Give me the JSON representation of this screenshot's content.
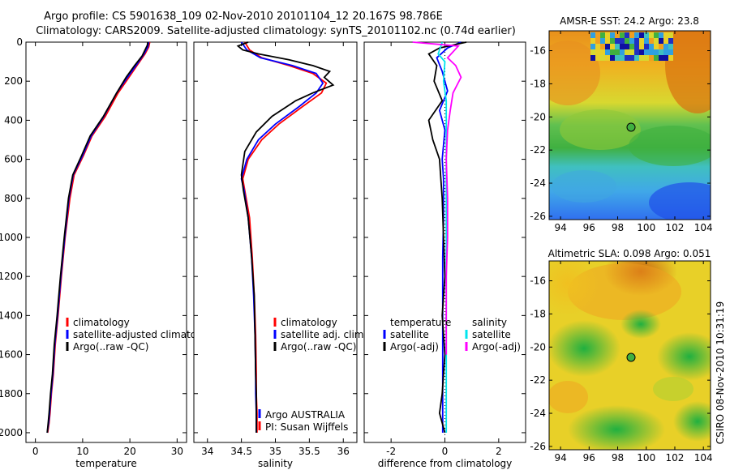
{
  "header": {
    "title_line1": "Argo profile: CS 5901638_109 02-Nov-2010 20101104_12 20.167S 98.786E",
    "title_line2": "Climatology: CARS2009. Satellite-adjusted climatology: synTS_20101102.nc (0.74d earlier)"
  },
  "side_label": "CSIRO 08-Nov-2010 10:31:19",
  "colors": {
    "red": "#ff0000",
    "blue": "#0000ff",
    "black": "#000000",
    "cyan": "#00e5ee",
    "magenta": "#ff00ff"
  },
  "chart_data": [
    {
      "type": "line",
      "panel": "temperature",
      "xlabel": "temperature",
      "xlim": [
        -2,
        32
      ],
      "ylim": [
        2050,
        0
      ],
      "xticks": [
        0,
        10,
        20,
        30
      ],
      "yticks": [
        0,
        200,
        400,
        600,
        800,
        1000,
        1200,
        1400,
        1600,
        1800,
        2000
      ],
      "legend": [
        "climatology",
        "satellite-adjusted climatolog",
        "Argo(..raw -QC)"
      ],
      "series": [
        {
          "name": "climatology",
          "color": "#ff0000",
          "x": [
            24.2,
            24.0,
            23.2,
            21.5,
            19.8,
            17.5,
            14.8,
            12.0,
            10.2,
            8.2,
            7.3,
            6.3,
            5.5,
            4.8,
            4.2,
            3.8,
            3.4,
            3.1,
            2.9,
            2.6
          ],
          "y": [
            0,
            25,
            60,
            120,
            180,
            260,
            380,
            480,
            580,
            680,
            800,
            1000,
            1200,
            1400,
            1550,
            1700,
            1800,
            1900,
            1950,
            2000
          ]
        },
        {
          "name": "satellite-adjusted climatolog",
          "color": "#0000ff",
          "x": [
            24.0,
            23.8,
            23.0,
            21.3,
            19.5,
            17.2,
            14.5,
            11.8,
            10.0,
            8.0,
            7.1,
            6.2,
            5.4,
            4.7,
            4.1,
            3.7,
            3.3,
            3.0,
            2.8,
            2.5
          ],
          "y": [
            0,
            25,
            60,
            120,
            180,
            260,
            380,
            480,
            580,
            680,
            800,
            1000,
            1200,
            1400,
            1550,
            1700,
            1800,
            1900,
            1950,
            2000
          ]
        },
        {
          "name": "Argo(..raw -QC)",
          "color": "#000000",
          "x": [
            23.8,
            23.7,
            23.2,
            22.6,
            21.0,
            19.2,
            17.2,
            14.4,
            11.6,
            9.8,
            7.9,
            7.0,
            6.1,
            5.3,
            4.6,
            4.0,
            3.6,
            3.2,
            2.9,
            2.7,
            2.5
          ],
          "y": [
            0,
            15,
            40,
            70,
            120,
            180,
            260,
            380,
            480,
            580,
            680,
            800,
            1000,
            1200,
            1400,
            1550,
            1700,
            1800,
            1900,
            1950,
            2000
          ]
        }
      ]
    },
    {
      "type": "line",
      "panel": "salinity",
      "xlabel": "salinity",
      "xlim": [
        33.8,
        36.2
      ],
      "ylim": [
        2050,
        0
      ],
      "xticks": [
        34,
        34.5,
        35,
        35.5,
        36
      ],
      "legend": [
        "climatology",
        "satellite adj. clim.",
        "Argo(..raw -QC)"
      ],
      "annotations": [
        "Argo AUSTRALIA",
        "PI: Susan Wijffels"
      ],
      "series": [
        {
          "name": "climatology",
          "color": "#ff0000",
          "x": [
            34.55,
            34.62,
            34.8,
            35.2,
            35.55,
            35.75,
            35.68,
            35.4,
            35.05,
            34.8,
            34.6,
            34.52,
            34.55,
            34.62,
            34.66,
            34.69,
            34.71,
            34.72,
            34.72,
            34.73,
            34.73
          ],
          "y": [
            0,
            40,
            80,
            120,
            160,
            210,
            260,
            330,
            420,
            500,
            600,
            700,
            760,
            900,
            1100,
            1300,
            1500,
            1700,
            1800,
            1900,
            2000
          ]
        },
        {
          "name": "satellite adj. clim.",
          "color": "#0000ff",
          "x": [
            34.5,
            34.58,
            34.78,
            35.25,
            35.6,
            35.7,
            35.6,
            35.35,
            35.0,
            34.75,
            34.58,
            34.5,
            34.54,
            34.6,
            34.65,
            34.68,
            34.7,
            34.71,
            34.71,
            34.72,
            34.72
          ],
          "y": [
            0,
            40,
            80,
            120,
            160,
            210,
            260,
            330,
            420,
            500,
            600,
            700,
            760,
            900,
            1100,
            1300,
            1500,
            1700,
            1800,
            1900,
            2000
          ]
        },
        {
          "name": "Argo(..raw -QC)",
          "color": "#000000",
          "x": [
            34.6,
            34.45,
            34.52,
            34.75,
            35.2,
            35.55,
            35.8,
            35.72,
            35.85,
            35.55,
            35.3,
            34.95,
            34.72,
            34.55,
            34.5,
            34.53,
            34.6,
            34.65,
            34.69,
            34.7,
            34.71,
            34.72,
            34.72,
            34.72
          ],
          "y": [
            0,
            20,
            40,
            60,
            90,
            120,
            150,
            180,
            220,
            260,
            300,
            380,
            460,
            560,
            680,
            760,
            900,
            1100,
            1300,
            1500,
            1700,
            1800,
            1900,
            2000
          ]
        }
      ]
    },
    {
      "type": "line",
      "panel": "difference",
      "xlabel": "difference from climatology",
      "xlim": [
        -3,
        3
      ],
      "ylim": [
        2050,
        0
      ],
      "xticks": [
        -2,
        0,
        2
      ],
      "legend_temperature": [
        "temperature",
        "satellite",
        "Argo(-adj)"
      ],
      "legend_salinity": [
        "salinity",
        "satellite",
        "Argo(-adj)"
      ],
      "series": [
        {
          "name": "temperature satellite",
          "color": "#0000ff",
          "x": [
            0.6,
            0.1,
            -0.3,
            -0.1,
            0.1,
            -0.2,
            0.0,
            -0.1,
            -0.05,
            -0.05,
            -0.08,
            -0.08,
            -0.08,
            -0.08,
            -0.08,
            -0.08
          ],
          "y": [
            0,
            30,
            80,
            150,
            250,
            350,
            450,
            600,
            700,
            900,
            1100,
            1300,
            1500,
            1700,
            1900,
            2000
          ]
        },
        {
          "name": "temperature Argo(-adj)",
          "color": "#000000",
          "x": [
            0.8,
            -0.2,
            -0.6,
            -0.3,
            -0.4,
            -0.1,
            -0.6,
            -0.45,
            -0.2,
            -0.15,
            -0.1,
            -0.05,
            0.0,
            -0.1,
            0.0,
            -0.05,
            -0.1,
            -0.2,
            0.0
          ],
          "y": [
            0,
            30,
            60,
            120,
            200,
            300,
            400,
            500,
            600,
            700,
            800,
            1000,
            1200,
            1400,
            1600,
            1700,
            1800,
            1900,
            2000
          ]
        },
        {
          "name": "salinity satellite",
          "color": "#00e5ee",
          "x": [
            -0.1,
            -0.25,
            0.0,
            -0.05,
            0.05,
            0.05,
            0.05,
            0.05,
            0.05,
            0.05,
            0.05,
            0.05,
            0.05,
            0.05
          ],
          "y": [
            0,
            60,
            100,
            200,
            300,
            400,
            600,
            800,
            1000,
            1200,
            1400,
            1600,
            1800,
            2000
          ]
        },
        {
          "name": "salinity Argo(-adj)",
          "color": "#ff00ff",
          "x": [
            -1.2,
            0.5,
            0.3,
            0.1,
            0.4,
            0.6,
            0.3,
            0.2,
            0.1,
            0.05,
            0.1,
            0.1,
            0.05,
            0.05,
            0.05
          ],
          "y": [
            0,
            20,
            50,
            80,
            120,
            180,
            260,
            350,
            450,
            600,
            800,
            1000,
            1200,
            1400,
            1600
          ]
        }
      ]
    },
    {
      "type": "heatmap",
      "panel": "sst_map",
      "title": "AMSR-E SST: 24.2 Argo: 23.8",
      "xlim": [
        93.2,
        104.5
      ],
      "ylim": [
        -26.2,
        -14.8
      ],
      "xticks": [
        94,
        96,
        98,
        100,
        102,
        104
      ],
      "yticks": [
        -16,
        -18,
        -20,
        -22,
        -24,
        -26
      ],
      "marker": {
        "lon": 98.786,
        "lat": -20.167
      }
    },
    {
      "type": "heatmap",
      "panel": "sla_map",
      "title": "Altimetric SLA: 0.098 Argo: 0.051",
      "xlim": [
        93.2,
        104.5
      ],
      "ylim": [
        -26.2,
        -14.8
      ],
      "xticks": [
        94,
        96,
        98,
        100,
        102,
        104
      ],
      "yticks": [
        -16,
        -18,
        -20,
        -22,
        -24,
        -26
      ],
      "marker": {
        "lon": 98.786,
        "lat": -20.167
      }
    }
  ]
}
